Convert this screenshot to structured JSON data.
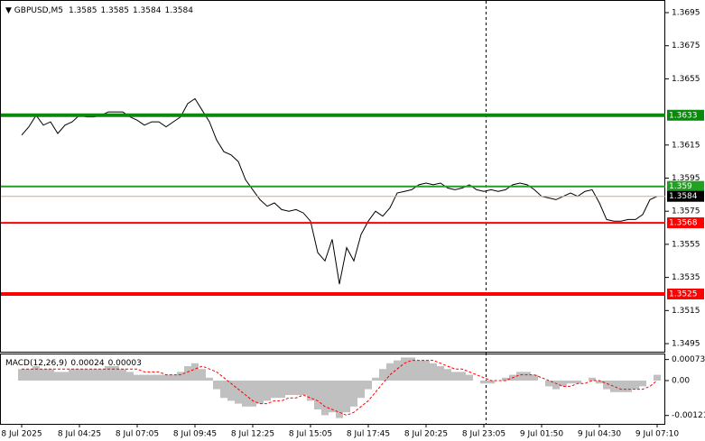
{
  "chart_data": [
    {
      "type": "line",
      "title": "GBPUSD,M5",
      "ohlc": [
        1.3585,
        1.3585,
        1.3584,
        1.3584
      ],
      "color": "#000000",
      "categories": [
        "8 Jul 2025",
        null,
        null,
        null,
        null,
        null,
        null,
        null,
        "8 Jul 04:25",
        null,
        null,
        null,
        null,
        null,
        null,
        null,
        "8 Jul 07:05",
        null,
        null,
        null,
        null,
        null,
        null,
        null,
        "8 Jul 09:45",
        null,
        null,
        null,
        null,
        null,
        null,
        null,
        "8 Jul 12:25",
        null,
        null,
        null,
        null,
        null,
        null,
        null,
        "8 Jul 15:05",
        null,
        null,
        null,
        null,
        null,
        null,
        null,
        "8 Jul 17:45",
        null,
        null,
        null,
        null,
        null,
        null,
        null,
        "8 Jul 20:25",
        null,
        null,
        null,
        null,
        null,
        null,
        null,
        "8 Jul 23:05",
        null,
        null,
        null,
        null,
        null,
        null,
        null,
        "9 Jul 01:50",
        null,
        null,
        null,
        null,
        null,
        null,
        null,
        "9 Jul 04:30",
        null,
        null,
        null,
        null,
        null,
        null,
        null,
        "9 Jul 07:10"
      ],
      "values": [
        1.3621,
        1.3626,
        1.3633,
        1.3627,
        1.3629,
        1.3622,
        1.3627,
        1.3629,
        1.3633,
        1.3632,
        1.3632,
        1.3633,
        1.3635,
        1.3635,
        1.3635,
        1.3632,
        1.363,
        1.3627,
        1.3629,
        1.3629,
        1.3626,
        1.3629,
        1.3632,
        1.364,
        1.3643,
        1.3636,
        1.3629,
        1.3618,
        1.3611,
        1.3609,
        1.3605,
        1.3594,
        1.3588,
        1.3582,
        1.3578,
        1.358,
        1.3576,
        1.3575,
        1.3576,
        1.3574,
        1.3569,
        1.355,
        1.3545,
        1.3558,
        1.3531,
        1.3553,
        1.3545,
        1.3561,
        1.3569,
        1.3575,
        1.3572,
        1.3577,
        1.3586,
        1.3587,
        1.3588,
        1.3591,
        1.3592,
        1.3591,
        1.3592,
        1.3589,
        1.3588,
        1.3589,
        1.3591,
        1.3588,
        1.3587,
        1.3588,
        1.3587,
        1.3588,
        1.3591,
        1.3592,
        1.3591,
        1.3588,
        1.3584,
        1.3583,
        1.3582,
        1.3584,
        1.3586,
        1.3584,
        1.3587,
        1.3588,
        1.358,
        1.357,
        1.3569,
        1.3569,
        1.357,
        1.357,
        1.3573,
        1.3582,
        1.3584
      ],
      "ylim": [
        1.349,
        1.3698
      ],
      "yticks": [
        1.3695,
        1.3675,
        1.3655,
        1.3615,
        1.3595,
        1.3575,
        1.3555,
        1.3535,
        1.3515,
        1.3495
      ],
      "levels": [
        {
          "value": 1.3633,
          "color": "#0a8a0a",
          "box_color": "#0a8a0a"
        },
        {
          "value": 1.359,
          "color": "#22a022",
          "box_color": "#22a022"
        },
        {
          "value": 1.3584,
          "color": "#d2aa82",
          "box_color": "#000000"
        },
        {
          "value": 1.3568,
          "color": "#ff0000",
          "box_color": "#ff0000"
        },
        {
          "value": 1.3525,
          "color": "#ff0000",
          "box_color": "#ff0000"
        }
      ]
    },
    {
      "type": "macd",
      "title": "MACD(12,26,9)",
      "current": [
        0.00024,
        3e-05
      ],
      "ylim": [
        -0.0015,
        0.0009
      ],
      "yticks": [
        0.00073,
        {
          "value": 0,
          "label": "0.00"
        },
        -0.00121
      ],
      "series": [
        {
          "type": "bar",
          "color": "#c0c0c0",
          "values": [
            0.0004,
            0.0004,
            0.0005,
            0.0004,
            0.0004,
            0.0003,
            0.0003,
            0.0004,
            0.0004,
            0.0004,
            0.0004,
            0.0004,
            0.0005,
            0.0005,
            0.0004,
            0.0003,
            0.0002,
            0.0002,
            0.0002,
            0.0002,
            0.0002,
            0.0002,
            0.0003,
            0.0005,
            0.0006,
            0.0004,
            0.0001,
            -0.0003,
            -0.0006,
            -0.0007,
            -0.0008,
            -0.0009,
            -0.0009,
            -0.0008,
            -0.0007,
            -0.0006,
            -0.0006,
            -0.0005,
            -0.0005,
            -0.0005,
            -0.0007,
            -0.001,
            -0.0012,
            -0.0011,
            -0.0013,
            -0.0011,
            -0.0009,
            -0.0006,
            -0.0003,
            0.0001,
            0.0004,
            0.0006,
            0.0007,
            0.0008,
            0.0008,
            0.0007,
            0.0007,
            0.0006,
            0.0005,
            0.0004,
            0.0003,
            0.0003,
            0.0002,
            0.0,
            -0.0001,
            -0.0001,
            0.0,
            0.0001,
            0.0002,
            0.0003,
            0.0003,
            0.0002,
            0.0,
            -0.0002,
            -0.0003,
            -0.0002,
            -0.0001,
            -0.0001,
            0.0,
            0.0001,
            -0.0001,
            -0.0003,
            -0.0004,
            -0.0004,
            -0.0004,
            -0.0003,
            -0.0002,
            0.0,
            0.0002
          ]
        },
        {
          "type": "line",
          "color": "#ff0000",
          "values": [
            0.0004,
            0.0004,
            0.0004,
            0.0004,
            0.0004,
            0.0004,
            0.0004,
            0.0004,
            0.0004,
            0.0004,
            0.0004,
            0.0004,
            0.0004,
            0.0004,
            0.0004,
            0.0004,
            0.0004,
            0.0003,
            0.0003,
            0.0003,
            0.0002,
            0.0002,
            0.0002,
            0.0003,
            0.0004,
            0.0005,
            0.0004,
            0.0003,
            0.0001,
            -0.0001,
            -0.0003,
            -0.0005,
            -0.0007,
            -0.0008,
            -0.0008,
            -0.0007,
            -0.0007,
            -0.0006,
            -0.0006,
            -0.0005,
            -0.0006,
            -0.0007,
            -0.0009,
            -0.001,
            -0.0011,
            -0.0012,
            -0.0011,
            -0.0009,
            -0.0007,
            -0.0004,
            -0.0001,
            0.0002,
            0.0004,
            0.0006,
            0.0007,
            0.0007,
            0.0007,
            0.0007,
            0.0006,
            0.0005,
            0.0004,
            0.0004,
            0.0003,
            0.0002,
            0.0001,
            0.0,
            0.0,
            0.0,
            0.0001,
            0.0002,
            0.0002,
            0.0002,
            0.0001,
            0.0,
            -0.0001,
            -0.0002,
            -0.0002,
            -0.0001,
            -0.0001,
            0.0,
            0.0,
            -0.0001,
            -0.0002,
            -0.0003,
            -0.0003,
            -0.0003,
            -0.0003,
            -0.0002,
            0.0
          ]
        }
      ]
    }
  ]
}
